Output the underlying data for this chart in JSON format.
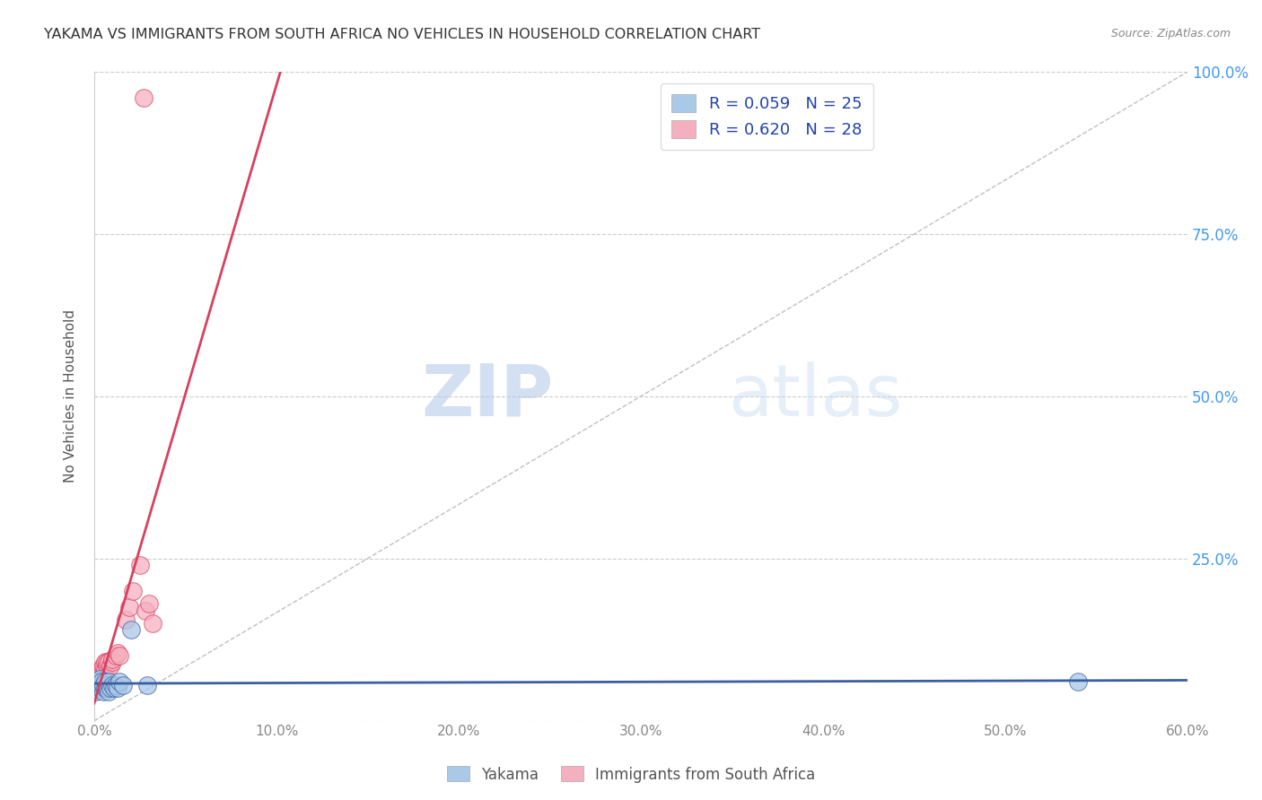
{
  "title": "YAKAMA VS IMMIGRANTS FROM SOUTH AFRICA NO VEHICLES IN HOUSEHOLD CORRELATION CHART",
  "source": "Source: ZipAtlas.com",
  "xlabel": "",
  "ylabel": "No Vehicles in Household",
  "xlim": [
    0.0,
    0.6
  ],
  "ylim": [
    0.0,
    1.0
  ],
  "xticks": [
    0.0,
    0.1,
    0.2,
    0.3,
    0.4,
    0.5,
    0.6
  ],
  "xticklabels": [
    "0.0%",
    "10.0%",
    "20.0%",
    "30.0%",
    "40.0%",
    "50.0%",
    "60.0%"
  ],
  "yticks": [
    0.0,
    0.25,
    0.5,
    0.75,
    1.0
  ],
  "yticklabels": [
    "",
    "25.0%",
    "50.0%",
    "75.0%",
    "100.0%"
  ],
  "grid_color": "#cccccc",
  "background_color": "#ffffff",
  "watermark_zip": "ZIP",
  "watermark_atlas": "atlas",
  "legend_r1": "R = 0.059",
  "legend_n1": "N = 25",
  "legend_r2": "R = 0.620",
  "legend_n2": "N = 28",
  "series1_color": "#aac8e8",
  "series2_color": "#f5b0c0",
  "series1_label": "Yakama",
  "series2_label": "Immigrants from South Africa",
  "line1_color": "#3a5fa0",
  "line2_color": "#d84060",
  "title_color": "#333333",
  "axis_label_color": "#555555",
  "tick_color_right": "#4499ee",
  "yakama_x": [
    0.001,
    0.002,
    0.002,
    0.003,
    0.003,
    0.004,
    0.004,
    0.005,
    0.005,
    0.006,
    0.006,
    0.007,
    0.007,
    0.008,
    0.008,
    0.009,
    0.01,
    0.011,
    0.012,
    0.013,
    0.014,
    0.016,
    0.02,
    0.029,
    0.54
  ],
  "yakama_y": [
    0.045,
    0.055,
    0.06,
    0.05,
    0.065,
    0.055,
    0.06,
    0.045,
    0.055,
    0.05,
    0.06,
    0.05,
    0.055,
    0.045,
    0.06,
    0.05,
    0.055,
    0.05,
    0.055,
    0.05,
    0.06,
    0.055,
    0.14,
    0.055,
    0.06
  ],
  "sa_x": [
    0.001,
    0.002,
    0.002,
    0.003,
    0.003,
    0.004,
    0.004,
    0.005,
    0.005,
    0.006,
    0.006,
    0.007,
    0.007,
    0.008,
    0.009,
    0.01,
    0.01,
    0.012,
    0.013,
    0.014,
    0.017,
    0.019,
    0.021,
    0.025,
    0.027,
    0.028,
    0.03,
    0.032
  ],
  "sa_y": [
    0.06,
    0.065,
    0.07,
    0.07,
    0.075,
    0.075,
    0.08,
    0.08,
    0.085,
    0.08,
    0.09,
    0.085,
    0.09,
    0.09,
    0.085,
    0.09,
    0.095,
    0.1,
    0.105,
    0.1,
    0.155,
    0.175,
    0.2,
    0.24,
    0.96,
    0.17,
    0.18,
    0.15
  ]
}
